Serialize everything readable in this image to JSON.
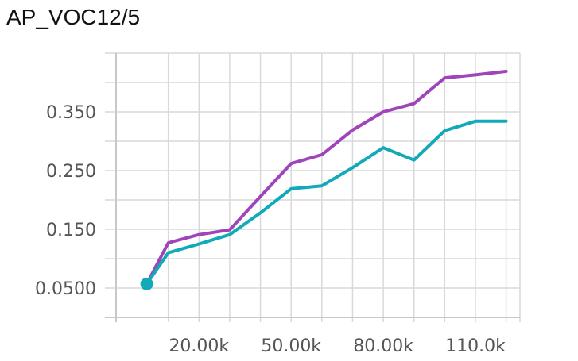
{
  "chart_data": {
    "type": "line",
    "title": "AP_VOC12/5",
    "xlabel": "",
    "ylabel": "",
    "xlim": [
      -7000,
      124500
    ],
    "ylim": [
      0,
      0.45
    ],
    "grid": true,
    "legend": "none",
    "x_ticks": [
      {
        "value": 20000,
        "label": "20.00k"
      },
      {
        "value": 50000,
        "label": "50.00k"
      },
      {
        "value": 80000,
        "label": "80.00k"
      },
      {
        "value": 110000,
        "label": "110.0k"
      }
    ],
    "y_ticks": [
      {
        "value": 0.05,
        "label": "0.0500"
      },
      {
        "value": 0.15,
        "label": "0.150"
      },
      {
        "value": 0.25,
        "label": "0.250"
      },
      {
        "value": 0.35,
        "label": "0.350"
      }
    ],
    "series": [
      {
        "color": "#a044bc",
        "x": [
          3000,
          10000,
          20000,
          30000,
          40000,
          50000,
          60000,
          70000,
          80000,
          90000,
          100000,
          110000,
          120000
        ],
        "y": [
          0.057,
          0.127,
          0.141,
          0.149,
          0.206,
          0.262,
          0.277,
          0.319,
          0.35,
          0.364,
          0.408,
          0.413,
          0.419
        ]
      },
      {
        "color": "#12a9b8",
        "x": [
          3000,
          10000,
          20000,
          30000,
          40000,
          50000,
          60000,
          70000,
          80000,
          90000,
          100000,
          110000,
          120000
        ],
        "y": [
          0.057,
          0.11,
          0.125,
          0.141,
          0.178,
          0.219,
          0.224,
          0.255,
          0.289,
          0.268,
          0.318,
          0.334,
          0.334
        ]
      }
    ],
    "highlight_point": {
      "x": 3000,
      "y": 0.057,
      "color": "#12a9b8"
    }
  }
}
